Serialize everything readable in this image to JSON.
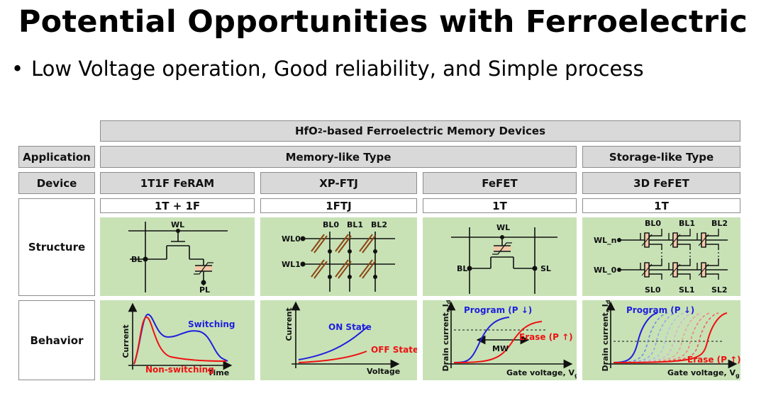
{
  "title": "Potential Opportunities with Ferroelectric",
  "bullet": {
    "marker": "•",
    "text": "Low Voltage operation, Good reliability, and Simple process"
  },
  "table": {
    "top_header": {
      "prefix": "HfO",
      "sub": "2",
      "suffix": "-based Ferroelectric Memory Devices"
    },
    "row_labels": {
      "application": "Application",
      "device": "Device",
      "structure": "Structure",
      "behavior": "Behavior"
    },
    "application_types": [
      "Memory-like Type",
      "Storage-like Type"
    ],
    "devices": [
      {
        "name": "1T1F FeRAM",
        "config": "1T + 1F"
      },
      {
        "name": "XP-FTJ",
        "config": "1FTJ"
      },
      {
        "name": "FeFET",
        "config": "1T"
      },
      {
        "name": "3D FeFET",
        "config": "1T"
      }
    ]
  },
  "structures": {
    "feram": {
      "wl": "WL",
      "bl": "BL",
      "pl": "PL"
    },
    "ftj": {
      "bl0": "BL0",
      "bl1": "BL1",
      "bl2": "BL2",
      "wl0": "WL0",
      "wl1": "WL1"
    },
    "fefet": {
      "wl": "WL",
      "bl": "BL",
      "sl": "SL"
    },
    "fefet3d": {
      "bl0": "BL0",
      "bl1": "BL1",
      "bl2": "BL2",
      "wln": "WL_n",
      "wl0": "WL_0",
      "sl0": "SL0",
      "sl1": "SL1",
      "sl2": "SL2"
    }
  },
  "behaviors": {
    "feram": {
      "ylabel": "Current",
      "xlabel": "Time",
      "series": [
        "Switching",
        "Non-switching"
      ],
      "colors": [
        "#1f1fdd",
        "#ee1111"
      ]
    },
    "ftj": {
      "ylabel": "Current",
      "xlabel": "Voltage",
      "series": [
        "ON State",
        "OFF State"
      ],
      "colors": [
        "#1f1fdd",
        "#ee1111"
      ]
    },
    "fefet": {
      "ylabel_main": "Drain current, I",
      "ylabel_sub": "d",
      "xlabel_main": "Gate voltage, V",
      "xlabel_sub": "g",
      "program": "Program (P ↓)",
      "erase": "Erase (P ↑)",
      "mw": "MW",
      "colors": [
        "#1f1fdd",
        "#ee1111"
      ]
    },
    "fefet3d": {
      "ylabel_main": "Drain current, I",
      "ylabel_sub": "d",
      "xlabel_main": "Gate  voltage, V",
      "xlabel_sub": "g",
      "program": "Program (P ↓)",
      "erase": "Erase (P ↑)",
      "colors": [
        "#1f1fdd",
        "#ee1111"
      ]
    }
  }
}
